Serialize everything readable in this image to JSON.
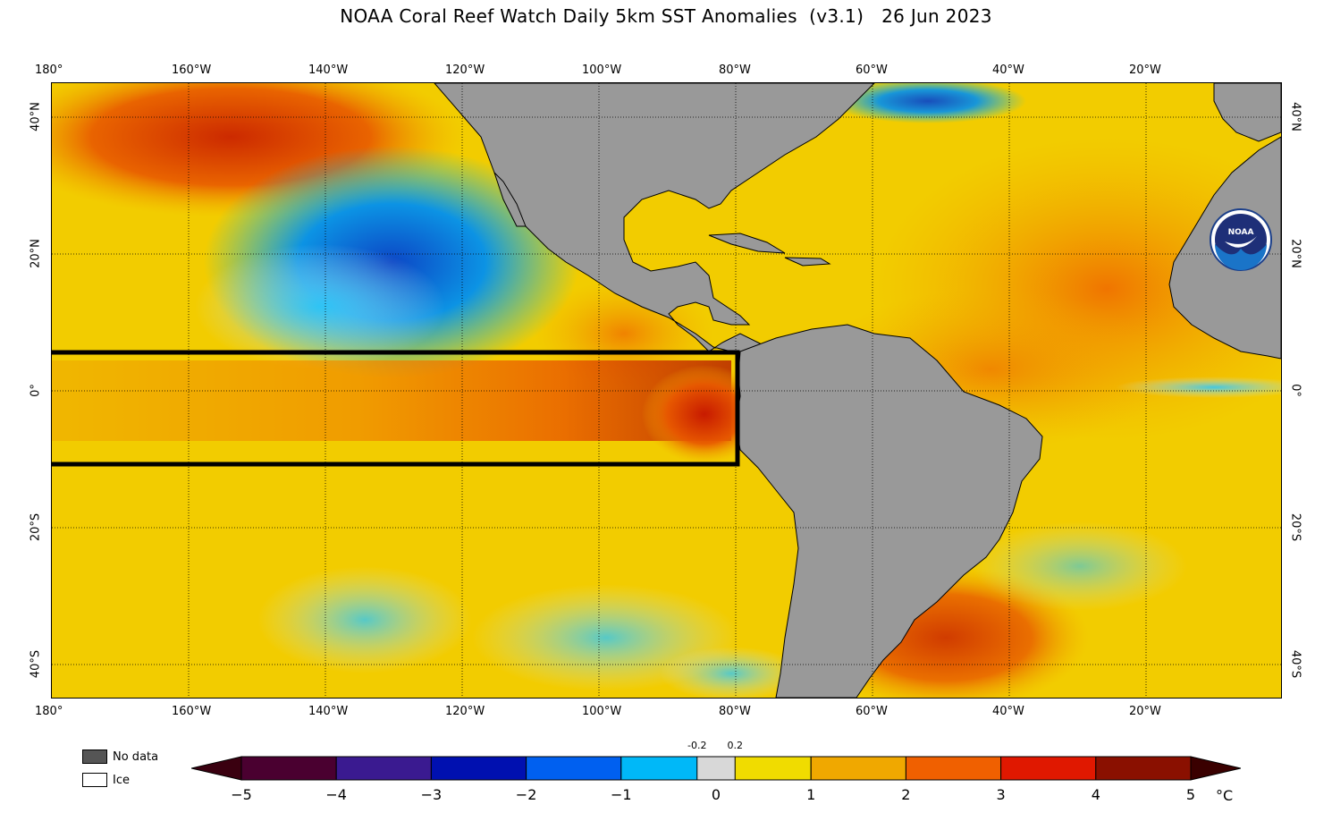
{
  "title": "NOAA Coral Reef Watch Daily 5km SST Anomalies  (v3.1)   26 Jun 2023",
  "lon_labels": [
    "180°",
    "160°W",
    "140°W",
    "120°W",
    "100°W",
    "80°W",
    "60°W",
    "40°W",
    "20°W"
  ],
  "lat_labels": [
    "40°N",
    "20°N",
    "0°",
    "20°S",
    "40°S"
  ],
  "logo_text": "NOAA",
  "legend": {
    "no_data": "No data",
    "ice": "Ice",
    "no_data_color": "#555555",
    "ice_color": "#ffffff"
  },
  "colorbar": {
    "ticks": [
      "−5",
      "−4",
      "−3",
      "−2",
      "−1",
      "0",
      "1",
      "2",
      "3",
      "4",
      "5"
    ],
    "neutral_labels": [
      "-0.2",
      "0.2"
    ],
    "unit": "°C",
    "colors": [
      "#4a0030",
      "#3a1a90",
      "#0010b0",
      "#0060f0",
      "#00b8f8",
      "#d8d8d8",
      "#f0dc00",
      "#f0a800",
      "#f06000",
      "#e01800",
      "#8a1000"
    ]
  },
  "highlight_region": "Niño region box (equatorial Pacific)"
}
